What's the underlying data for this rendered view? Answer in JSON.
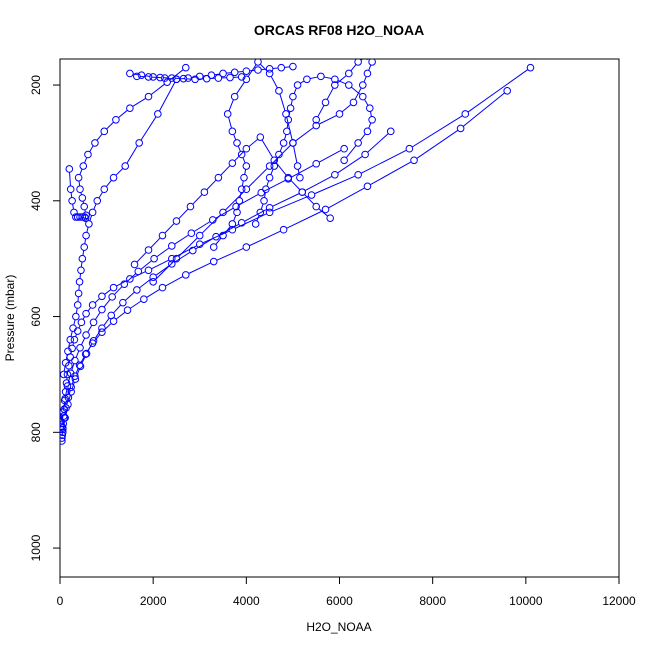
{
  "chart_data": {
    "type": "line",
    "title": "ORCAS RF08 H2O_NOAA",
    "xlabel": "H2O_NOAA",
    "ylabel": "Pressure (mbar)",
    "xlim": [
      0,
      12000
    ],
    "ylim": [
      1050,
      155
    ],
    "y_reversed": true,
    "xticks": [
      "0",
      "2000",
      "4000",
      "6000",
      "8000",
      "10000",
      "12000"
    ],
    "yticks": [
      "200",
      "400",
      "600",
      "800",
      "1000"
    ],
    "grid": false,
    "legend": "none",
    "color": "#0000ff",
    "marker": "open-circle",
    "series": [
      {
        "x": [
          40,
          50,
          60,
          70,
          80,
          90,
          100,
          120,
          140,
          160,
          190,
          220,
          260,
          310,
          380,
          460,
          560,
          700,
          900,
          1150,
          1500,
          1900,
          2400,
          3000,
          3700,
          4500,
          5400,
          6400,
          7500,
          8700,
          10100
        ],
        "y": [
          815,
          805,
          795,
          785,
          772,
          760,
          745,
          730,
          715,
          700,
          685,
          670,
          655,
          640,
          625,
          610,
          595,
          580,
          565,
          550,
          535,
          520,
          500,
          475,
          450,
          420,
          390,
          355,
          310,
          250,
          170
        ]
      },
      {
        "x": [
          40,
          60,
          90,
          130,
          180,
          240,
          320,
          420,
          550,
          700,
          900,
          1150,
          1450,
          1800,
          2200,
          2700,
          3300,
          4000,
          4800,
          5700,
          6600,
          7600,
          8600,
          9600
        ],
        "y": [
          810,
          792,
          775,
          758,
          740,
          722,
          703,
          684,
          665,
          646,
          627,
          608,
          589,
          570,
          550,
          528,
          505,
          480,
          450,
          415,
          375,
          330,
          275,
          210
        ]
      },
      {
        "x": [
          60,
          110,
          170,
          240,
          330,
          440,
          570,
          720,
          900,
          1100,
          1350,
          1650,
          2000,
          2400,
          2850,
          3350,
          3900,
          4500,
          5200,
          5900,
          6550,
          7100
        ],
        "y": [
          800,
          775,
          752,
          730,
          708,
          686,
          664,
          642,
          620,
          598,
          576,
          554,
          532,
          509,
          486,
          462,
          438,
          412,
          385,
          355,
          320,
          280
        ]
      },
      {
        "x": [
          40,
          70,
          110,
          160,
          230,
          320,
          430,
          560,
          720,
          900,
          1120,
          1380,
          1680,
          2020,
          2400,
          2820,
          3280,
          3780,
          4320,
          4900,
          5500,
          6100
        ],
        "y": [
          790,
          765,
          742,
          720,
          698,
          676,
          654,
          632,
          610,
          588,
          566,
          544,
          522,
          500,
          478,
          456,
          433,
          410,
          386,
          362,
          336,
          310
        ]
      },
      {
        "x": [
          200,
          230,
          260,
          300,
          340,
          380,
          430,
          480,
          530,
          550,
          560,
          520,
          480,
          430,
          400,
          500,
          600,
          750,
          950,
          1200,
          1500,
          1900,
          2300,
          2700
        ],
        "y": [
          345,
          380,
          400,
          420,
          428,
          428,
          428,
          428,
          428,
          430,
          425,
          410,
          395,
          380,
          360,
          340,
          320,
          300,
          280,
          260,
          240,
          220,
          195,
          170
        ]
      },
      {
        "x": [
          80,
          120,
          170,
          220,
          280,
          340,
          380,
          400,
          420,
          450,
          480,
          520,
          560,
          620,
          700,
          800,
          950,
          1150,
          1400,
          1700,
          2100,
          2500
        ],
        "y": [
          700,
          680,
          660,
          640,
          620,
          600,
          580,
          560,
          540,
          520,
          500,
          480,
          460,
          440,
          420,
          400,
          380,
          360,
          340,
          300,
          250,
          190
        ]
      },
      {
        "x": [
          4200,
          4300,
          4380,
          4420,
          4500,
          4600,
          4700,
          4800,
          4870,
          4900,
          4950,
          5000,
          5100,
          5300,
          5600,
          5900,
          6200,
          6500,
          6650,
          6700,
          6600,
          6400,
          6100
        ],
        "y": [
          440,
          420,
          400,
          380,
          360,
          340,
          320,
          300,
          280,
          260,
          240,
          220,
          200,
          190,
          185,
          190,
          200,
          220,
          240,
          260,
          280,
          300,
          330
        ]
      },
      {
        "x": [
          3300,
          3500,
          3700,
          3800,
          3850,
          3900,
          3950,
          4000,
          3900,
          3800,
          3700,
          3600,
          3750,
          4000,
          4250,
          4500,
          4700,
          4850,
          5000,
          5100,
          5150
        ],
        "y": [
          480,
          460,
          440,
          420,
          400,
          380,
          360,
          340,
          320,
          300,
          280,
          250,
          220,
          190,
          160,
          180,
          210,
          250,
          300,
          340,
          360
        ]
      },
      {
        "x": [
          2000,
          2500,
          3000,
          3500,
          4000,
          4500,
          5000,
          5500,
          6000,
          6300,
          6500,
          6600,
          6700,
          6600,
          6400,
          6200,
          5900,
          5700,
          5500
        ],
        "y": [
          540,
          500,
          460,
          420,
          380,
          340,
          300,
          270,
          250,
          230,
          200,
          180,
          160,
          150,
          160,
          180,
          200,
          230,
          260
        ]
      },
      {
        "x": [
          1600,
          1900,
          2200,
          2500,
          2800,
          3100,
          3400,
          3700,
          4000,
          4300,
          4600,
          4900,
          5200,
          5500,
          5800
        ],
        "y": [
          510,
          485,
          460,
          435,
          410,
          385,
          360,
          335,
          310,
          290,
          330,
          360,
          385,
          410,
          430
        ]
      },
      {
        "x": [
          1500,
          1750,
          2000,
          2250,
          2500,
          2750,
          3000,
          3250,
          3500,
          3750,
          4000,
          4250,
          4500,
          4750,
          5000
        ],
        "y": [
          180,
          183,
          186,
          188,
          190,
          188,
          185,
          183,
          180,
          178,
          176,
          174,
          172,
          170,
          168
        ]
      },
      {
        "x": [
          1650,
          1900,
          2150,
          2400,
          2650,
          2900,
          3150,
          3400,
          3650,
          3900
        ],
        "y": [
          185,
          186,
          187,
          188,
          189,
          190,
          189,
          188,
          187,
          186
        ]
      }
    ]
  }
}
